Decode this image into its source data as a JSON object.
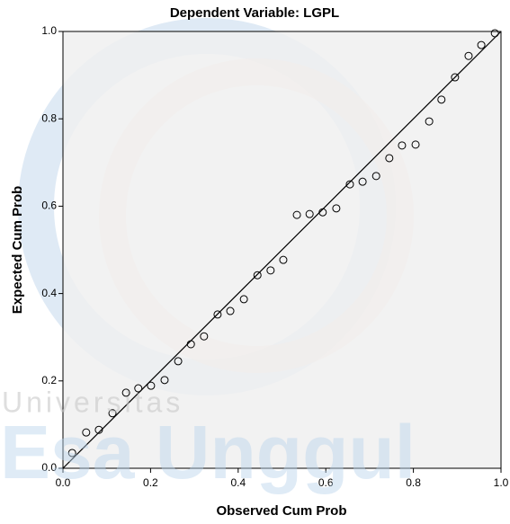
{
  "chart_data": {
    "type": "scatter",
    "title": "Dependent Variable: LGPL",
    "x_label": "Observed Cum Prob",
    "y_label": "Expected Cum Prob",
    "x": [
      0.021,
      0.053,
      0.082,
      0.113,
      0.144,
      0.172,
      0.201,
      0.232,
      0.263,
      0.292,
      0.322,
      0.353,
      0.382,
      0.413,
      0.444,
      0.474,
      0.503,
      0.534,
      0.563,
      0.593,
      0.624,
      0.655,
      0.684,
      0.715,
      0.745,
      0.774,
      0.805,
      0.836,
      0.864,
      0.895,
      0.926,
      0.955,
      0.986
    ],
    "values": [
      0.035,
      0.082,
      0.088,
      0.126,
      0.173,
      0.183,
      0.189,
      0.202,
      0.245,
      0.284,
      0.302,
      0.352,
      0.36,
      0.387,
      0.442,
      0.453,
      0.477,
      0.58,
      0.582,
      0.586,
      0.595,
      0.65,
      0.656,
      0.669,
      0.71,
      0.739,
      0.741,
      0.794,
      0.844,
      0.895,
      0.944,
      0.969,
      0.996
    ],
    "color": "#000000",
    "reference_line": {
      "x": [
        0,
        1
      ],
      "y": [
        0,
        1
      ]
    },
    "xlim": [
      0,
      1
    ],
    "ylim": [
      0,
      1
    ],
    "xticks": [
      {
        "value": 0,
        "label": "0.0"
      },
      0.2,
      0.4,
      0.6,
      0.8,
      {
        "value": 1,
        "label": "1.0"
      }
    ],
    "yticks": [
      {
        "value": 0,
        "label": "0.0"
      },
      0.2,
      0.4,
      0.6,
      0.8,
      {
        "value": 1,
        "label": "1.0"
      }
    ],
    "watermark": [
      "Universitas",
      "Esa Unggul"
    ]
  }
}
